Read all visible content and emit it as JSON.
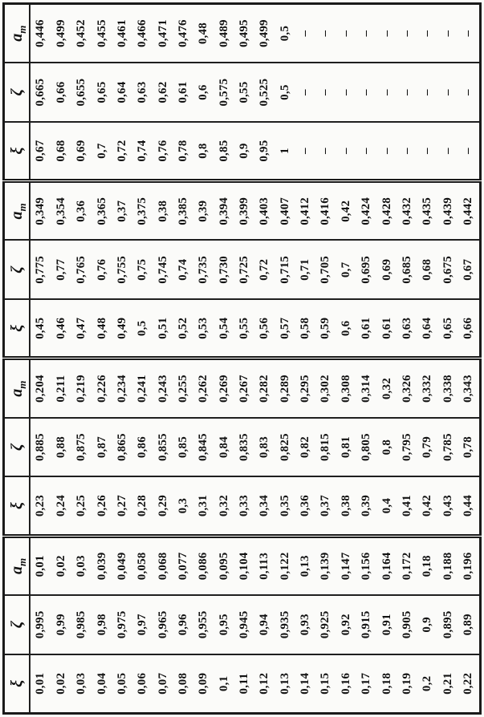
{
  "table": {
    "column_headers": [
      {
        "base": "ξ",
        "sub": ""
      },
      {
        "base": "ζ",
        "sub": ""
      },
      {
        "base": "a",
        "sub": "m"
      }
    ],
    "groups": [
      {
        "xi": [
          "0,01",
          "0,02",
          "0,03",
          "0,04",
          "0,05",
          "0,06",
          "0,07",
          "0,08",
          "0,09",
          "0,1",
          "0,11",
          "0,12",
          "0,13",
          "0,14",
          "0,15",
          "0,16",
          "0,17",
          "0,18",
          "0,19",
          "0,2",
          "0,21",
          "0,22"
        ],
        "zeta": [
          "0,995",
          "0,99",
          "0,985",
          "0,98",
          "0,975",
          "0,97",
          "0,965",
          "0,96",
          "0,955",
          "0,95",
          "0,945",
          "0,94",
          "0,935",
          "0,93",
          "0,925",
          "0,92",
          "0,915",
          "0,91",
          "0,905",
          "0,9",
          "0,895",
          "0,89"
        ],
        "am": [
          "0,01",
          "0,02",
          "0,03",
          "0,039",
          "0,049",
          "0,058",
          "0,068",
          "0,077",
          "0,086",
          "0,095",
          "0,104",
          "0,113",
          "0,122",
          "0,13",
          "0,139",
          "0,147",
          "0,156",
          "0,164",
          "0,172",
          "0,18",
          "0,188",
          "0,196"
        ]
      },
      {
        "xi": [
          "0,23",
          "0,24",
          "0,25",
          "0,26",
          "0,27",
          "0,28",
          "0,29",
          "0,3",
          "0,31",
          "0,32",
          "0,33",
          "0,34",
          "0,35",
          "0,36",
          "0,37",
          "0,38",
          "0,39",
          "0,4",
          "0,41",
          "0,42",
          "0,43",
          "0,44"
        ],
        "zeta": [
          "0,885",
          "0,88",
          "0,875",
          "0,87",
          "0,865",
          "0,86",
          "0,855",
          "0,85",
          "0,845",
          "0,84",
          "0,835",
          "0,83",
          "0,825",
          "0,82",
          "0,815",
          "0,81",
          "0,805",
          "0,8",
          "0,795",
          "0,79",
          "0,785",
          "0,78"
        ],
        "am": [
          "0,204",
          "0,211",
          "0,219",
          "0,226",
          "0,234",
          "0,241",
          "0,243",
          "0,255",
          "0,262",
          "0,269",
          "0,267",
          "0,282",
          "0,289",
          "0,295",
          "0,302",
          "0,308",
          "0,314",
          "0,32",
          "0,326",
          "0,332",
          "0,338",
          "0,343"
        ]
      },
      {
        "xi": [
          "0,45",
          "0,46",
          "0,47",
          "0,48",
          "0,49",
          "0,5",
          "0,51",
          "0,52",
          "0,53",
          "0,54",
          "0,55",
          "0,56",
          "0,57",
          "0,58",
          "0,59",
          "0,6",
          "0,61",
          "0,61",
          "0,63",
          "0,64",
          "0,65",
          "0,66"
        ],
        "zeta": [
          "0,775",
          "0,77",
          "0,765",
          "0,76",
          "0,755",
          "0,75",
          "0,745",
          "0,74",
          "0,735",
          "0,730",
          "0,725",
          "0,72",
          "0,715",
          "0,71",
          "0,705",
          "0,7",
          "0,695",
          "0,69",
          "0,685",
          "0,68",
          "0,675",
          "0,67"
        ],
        "am": [
          "0,349",
          "0,354",
          "0,36",
          "0,365",
          "0,37",
          "0,375",
          "0,38",
          "0,385",
          "0,39",
          "0,394",
          "0,399",
          "0,403",
          "0,407",
          "0,412",
          "0,416",
          "0,42",
          "0,424",
          "0,428",
          "0,432",
          "0,435",
          "0,439",
          "0,442"
        ]
      },
      {
        "xi": [
          "0,67",
          "0,68",
          "0,69",
          "0,7",
          "0,72",
          "0,74",
          "0,76",
          "0,78",
          "0,8",
          "0,85",
          "0,9",
          "0,95",
          "1",
          "–",
          "–",
          "–",
          "–",
          "–",
          "–",
          "–",
          "–",
          "–"
        ],
        "zeta": [
          "0,665",
          "0,66",
          "0,655",
          "0,65",
          "0,64",
          "0,63",
          "0,62",
          "0,61",
          "0,6",
          "0,575",
          "0,55",
          "0,525",
          "0,5",
          "–",
          "–",
          "–",
          "–",
          "–",
          "–",
          "–",
          "–",
          "–"
        ],
        "am": [
          "0,446",
          "0,499",
          "0,452",
          "0,455",
          "0,461",
          "0,466",
          "0,471",
          "0,476",
          "0,48",
          "0,489",
          "0,495",
          "0,499",
          "0,5",
          "–",
          "–",
          "–",
          "–",
          "–",
          "–",
          "–",
          "–",
          "–"
        ]
      }
    ]
  },
  "style": {
    "border_color": "#1a1a1a",
    "text_color": "#111111",
    "background": "#fbfbf9"
  }
}
